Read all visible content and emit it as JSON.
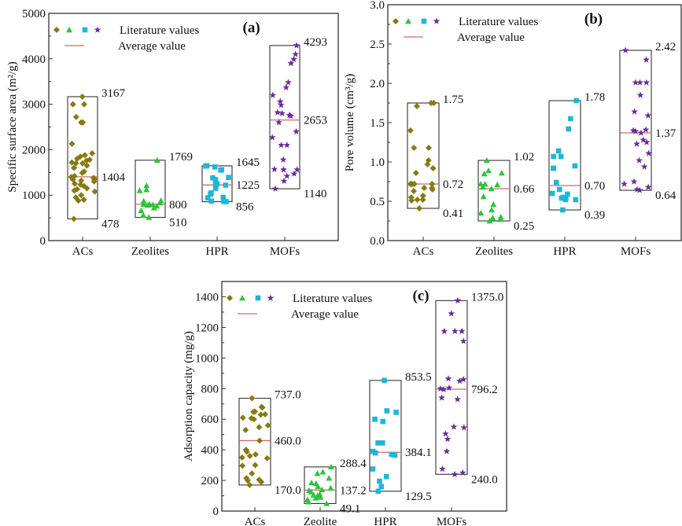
{
  "colors": {
    "ACs": "#857b12",
    "Zeolites": "#2ec43a",
    "HPR": "#1fb6d8",
    "MOFs": "#6b2a9c",
    "average": "#d06a6a",
    "box": "#333333"
  },
  "chart_data": [
    {
      "type": "scatter",
      "panel_label": "(a)",
      "ylabel": "Specific surface area (m²/g)",
      "ylim": [
        0,
        5000
      ],
      "yticks": [
        "0",
        "1000",
        "2000",
        "3000",
        "4000",
        "5000"
      ],
      "categories": [
        "ACs",
        "Zeolites",
        "HPR",
        "MOFs"
      ],
      "legend": {
        "points": "Literature values",
        "average": "Average value",
        "position": "top-left"
      },
      "markers": [
        "diamond",
        "triangle",
        "square",
        "star"
      ],
      "series": [
        {
          "category": "ACs",
          "max": 3167,
          "avg": 1404,
          "min": 478,
          "max_label": "3167",
          "avg_label": "1404",
          "min_label": "478",
          "values": [
            3167,
            3000,
            3000,
            2720,
            2600,
            2600,
            2130,
            1920,
            1880,
            1850,
            1800,
            1780,
            1760,
            1720,
            1700,
            1700,
            1650,
            1600,
            1520,
            1490,
            1420,
            1400,
            1380,
            1350,
            1340,
            1320,
            1300,
            1250,
            1230,
            1200,
            1150,
            1130,
            1100,
            1080,
            1000,
            950,
            900,
            880,
            478
          ]
        },
        {
          "category": "Zeolites",
          "max": 1769,
          "avg": 800,
          "min": 510,
          "max_label": "1769",
          "avg_label": "800",
          "min_label": "510",
          "values": [
            1769,
            1210,
            1120,
            1100,
            880,
            870,
            830,
            800,
            800,
            790,
            780,
            760,
            720,
            660,
            560,
            510
          ]
        },
        {
          "category": "HPR",
          "max": 1645,
          "avg": 1225,
          "min": 856,
          "max_label": "1645",
          "avg_label": "1225",
          "min_label": "856",
          "values": [
            1645,
            1640,
            1620,
            1560,
            1550,
            1390,
            1380,
            1340,
            1250,
            1240,
            1220,
            1190,
            1150,
            1050,
            1020,
            950,
            940,
            870,
            860,
            856
          ]
        },
        {
          "category": "MOFs",
          "max": 4293,
          "avg": 2653,
          "min": 1140,
          "max_label": "4293",
          "avg_label": "2653",
          "min_label": "1140",
          "values": [
            4293,
            4100,
            3990,
            3900,
            3480,
            3370,
            3200,
            3060,
            2980,
            2820,
            2800,
            2760,
            2740,
            2600,
            2400,
            2270,
            2100,
            2100,
            1780,
            1570,
            1560,
            1560,
            1470,
            1420,
            1310,
            1140
          ]
        }
      ]
    },
    {
      "type": "scatter",
      "panel_label": "(b)",
      "ylabel": "Pore volume (cm³/g)",
      "ylim": [
        0,
        3.0
      ],
      "yticks": [
        "0.0",
        "0.5",
        "1.0",
        "1.5",
        "2.0",
        "2.5",
        "3.0"
      ],
      "categories": [
        "ACs",
        "Zeolites",
        "HPR",
        "MOFs"
      ],
      "legend": {
        "points": "Literature values",
        "average": "Average value",
        "position": "top-left"
      },
      "markers": [
        "diamond",
        "triangle",
        "square",
        "star"
      ],
      "series": [
        {
          "category": "ACs",
          "max": 1.75,
          "avg": 0.72,
          "min": 0.41,
          "max_label": "1.75",
          "avg_label": "0.72",
          "min_label": "0.41",
          "values": [
            1.75,
            1.75,
            1.71,
            1.4,
            1.18,
            1.18,
            1.02,
            0.97,
            0.92,
            0.86,
            0.72,
            0.72,
            0.72,
            0.72,
            0.72,
            0.67,
            0.67,
            0.65,
            0.63,
            0.57,
            0.55,
            0.52,
            0.52,
            0.51,
            0.41
          ]
        },
        {
          "category": "Zeolites",
          "max": 1.02,
          "avg": 0.66,
          "min": 0.25,
          "max_label": "1.02",
          "avg_label": "0.66",
          "min_label": "0.25",
          "values": [
            1.02,
            0.89,
            0.86,
            0.85,
            0.72,
            0.72,
            0.71,
            0.68,
            0.66,
            0.56,
            0.46,
            0.39,
            0.35,
            0.3,
            0.29,
            0.27,
            0.25
          ]
        },
        {
          "category": "HPR",
          "max": 1.78,
          "avg": 0.7,
          "min": 0.39,
          "max_label": "1.78",
          "avg_label": "0.70",
          "min_label": "0.39",
          "values": [
            1.78,
            1.55,
            1.42,
            1.14,
            1.07,
            1.07,
            0.95,
            0.92,
            0.92,
            0.74,
            0.65,
            0.6,
            0.59,
            0.55,
            0.54,
            0.54,
            0.52,
            0.52,
            0.39
          ]
        },
        {
          "category": "MOFs",
          "max": 2.42,
          "avg": 1.37,
          "min": 0.64,
          "max_label": "2.42",
          "avg_label": "1.37",
          "min_label": "0.64",
          "values": [
            2.42,
            2.3,
            2.01,
            2.01,
            2.01,
            1.85,
            1.64,
            1.59,
            1.41,
            1.4,
            1.39,
            1.37,
            1.28,
            1.25,
            1.23,
            1.11,
            1.02,
            0.94,
            0.75,
            0.72,
            0.68,
            0.65,
            0.64
          ]
        }
      ]
    },
    {
      "type": "scatter",
      "panel_label": "(c)",
      "ylabel": "Adsorption capacity (mg/g)",
      "ylim": [
        0,
        1500
      ],
      "yticks": [
        "0",
        "200",
        "400",
        "600",
        "800",
        "1000",
        "1200",
        "1400"
      ],
      "categories": [
        "ACs",
        "Zeolite",
        "HPR",
        "MOFs"
      ],
      "legend": {
        "points": "Literature values",
        "average": "Average value",
        "position": "top-left"
      },
      "markers": [
        "diamond",
        "triangle",
        "square",
        "star"
      ],
      "series": [
        {
          "category": "ACs",
          "max": 737.0,
          "avg": 460.0,
          "min": 170.0,
          "max_label": "737.0",
          "avg_label": "460.0",
          "min_label": "170.0",
          "values": [
            737,
            680,
            677,
            650,
            648,
            632,
            630,
            610,
            606,
            600,
            560,
            548,
            530,
            460,
            400,
            388,
            370,
            360,
            350,
            345,
            300,
            296,
            245,
            215,
            205,
            200,
            190,
            170
          ]
        },
        {
          "category": "Zeolite",
          "max": 288.4,
          "avg": 137.2,
          "min": 49.1,
          "max_label": "288.4",
          "avg_label": "137.2",
          "min_label": "49.1",
          "values": [
            288.4,
            255,
            245,
            215,
            185,
            180,
            160,
            150,
            140,
            135,
            125,
            110,
            105,
            100,
            90,
            85,
            75,
            60,
            49.1
          ]
        },
        {
          "category": "HPR",
          "max": 853.5,
          "avg": 384.1,
          "min": 129.5,
          "max_label": "853.5",
          "avg_label": "384.1",
          "min_label": "129.5",
          "values": [
            853.5,
            655,
            645,
            600,
            585,
            445,
            445,
            390,
            380,
            370,
            365,
            275,
            225,
            195,
            160,
            129.5
          ]
        },
        {
          "category": "MOFs",
          "max": 1375.0,
          "avg": 796.2,
          "min": 240.0,
          "max_label": "1375.0",
          "avg_label": "796.2",
          "min_label": "240.0",
          "values": [
            1375,
            1290,
            1175,
            1175,
            1175,
            1110,
            865,
            860,
            850,
            805,
            800,
            795,
            740,
            730,
            550,
            545,
            505,
            470,
            390,
            275,
            250,
            240
          ]
        }
      ]
    }
  ]
}
